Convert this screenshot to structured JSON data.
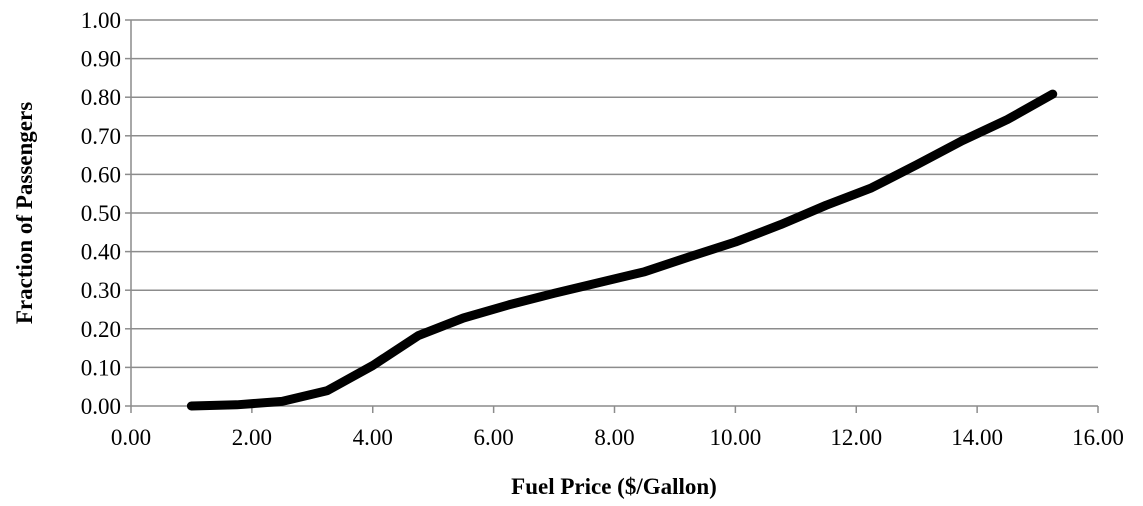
{
  "chart_data": {
    "type": "line",
    "title": "",
    "xlabel": "Fuel Price ($/Gallon)",
    "ylabel": "Fraction of Passengers",
    "xlim": [
      0,
      16
    ],
    "ylim": [
      0,
      1
    ],
    "grid": "horizontal",
    "legend": "none",
    "x_tick_labels": [
      "0.00",
      "2.00",
      "4.00",
      "6.00",
      "8.00",
      "10.00",
      "12.00",
      "14.00",
      "16.00"
    ],
    "y_tick_labels": [
      "0.00",
      "0.10",
      "0.20",
      "0.30",
      "0.40",
      "0.50",
      "0.60",
      "0.70",
      "0.80",
      "0.90",
      "1.00"
    ],
    "series": [
      {
        "x": [
          1.0,
          1.75,
          2.5,
          3.25,
          4.0,
          4.75,
          5.5,
          6.25,
          7.0,
          7.75,
          8.5,
          9.25,
          10.0,
          10.75,
          11.5,
          12.25,
          13.0,
          13.75,
          14.5,
          15.25
        ],
        "y": [
          0.0,
          0.003,
          0.012,
          0.04,
          0.105,
          0.182,
          0.228,
          0.262,
          0.292,
          0.32,
          0.348,
          0.387,
          0.425,
          0.47,
          0.52,
          0.565,
          0.625,
          0.687,
          0.742,
          0.808
        ],
        "color": "#000000"
      }
    ]
  }
}
